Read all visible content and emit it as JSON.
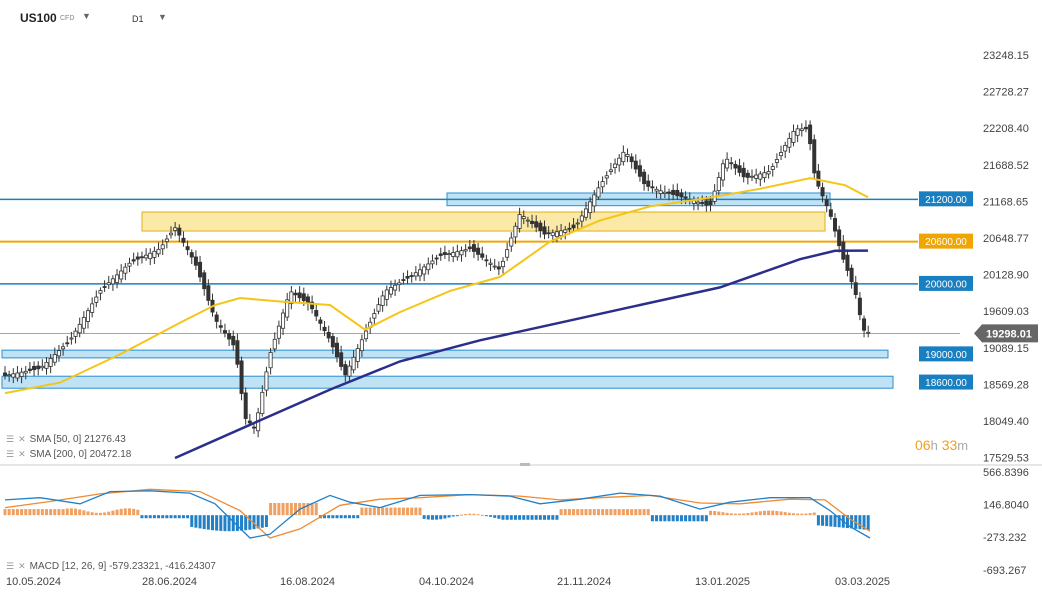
{
  "header": {
    "symbol": "US100",
    "instrument_type": "CFD",
    "timeframe": "D1"
  },
  "price_axis": {
    "labels": [
      "23248.15",
      "22728.27",
      "22208.40",
      "21688.52",
      "21168.65",
      "20648.77",
      "20128.90",
      "19609.03",
      "19089.15",
      "18569.28",
      "18049.40",
      "17529.53"
    ],
    "current_price": "19298.01"
  },
  "levels": [
    {
      "label": "21200.00",
      "value": 21200,
      "color": "#1a7fc0"
    },
    {
      "label": "20600.00",
      "value": 20600,
      "color": "#f0a500"
    },
    {
      "label": "20000.00",
      "value": 20000,
      "color": "#1a7fc0"
    },
    {
      "label": "19000.00",
      "value": 19000,
      "color": "#1a7fc0"
    },
    {
      "label": "18600.00",
      "value": 18600,
      "color": "#1a7fc0"
    }
  ],
  "legend": {
    "sma50": "SMA [50, 0] 21276.43",
    "sma200": "SMA [200, 0] 20472.18",
    "macd": "MACD [12, 26, 9] -579.23321, -416.24307"
  },
  "countdown": {
    "hours": "06",
    "h": "h",
    "minutes": "33",
    "m": "m"
  },
  "macd_axis": {
    "labels": [
      "566.8396",
      "146.8040",
      "-273.232",
      "-693.267"
    ]
  },
  "date_axis": {
    "labels": [
      "10.05.2024",
      "28.06.2024",
      "16.08.2024",
      "04.10.2024",
      "21.11.2024",
      "13.01.2025",
      "03.03.2025"
    ]
  },
  "colors": {
    "candle": "#333333",
    "sma50": "#f5c518",
    "sma200": "#2c2f8a",
    "macd_line": "#2080c8",
    "signal_line": "#f08a30",
    "hist_pos": "#f0a060",
    "hist_neg": "#2080c8",
    "zone_blue": "#bfe3f5",
    "zone_yellow": "#fbe9a8"
  }
}
